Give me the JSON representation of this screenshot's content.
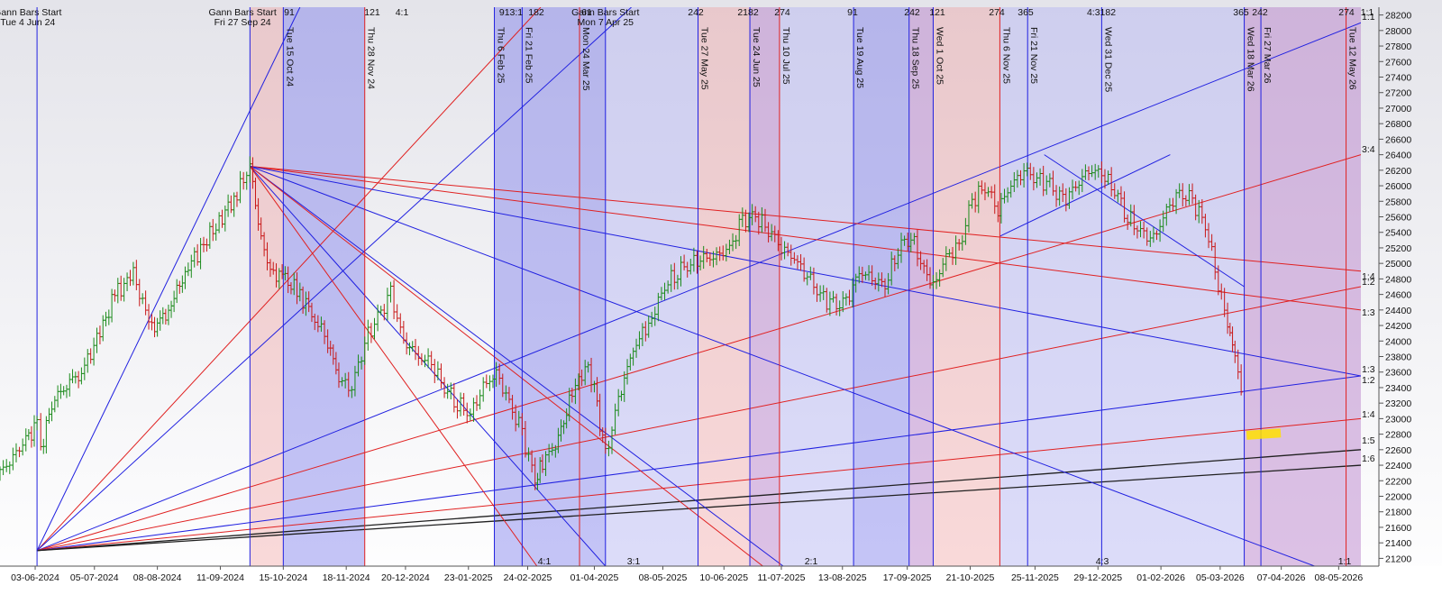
{
  "chart_data": {
    "type": "line",
    "title": "",
    "xlabel": "",
    "ylabel": "",
    "ylim": [
      21100,
      28300
    ],
    "xlim": [
      "2024-05-15",
      "2026-05-20"
    ],
    "grid": false,
    "price_ticks": [
      21200,
      21400,
      21600,
      21800,
      22000,
      22200,
      22400,
      22600,
      22800,
      23000,
      23200,
      23400,
      23600,
      23800,
      24000,
      24200,
      24400,
      24600,
      24800,
      25000,
      25200,
      25400,
      25600,
      25800,
      26000,
      26200,
      26400,
      26600,
      26800,
      27000,
      27200,
      27400,
      27600,
      27800,
      28000,
      28200
    ],
    "date_ticks": [
      {
        "date": "2024-06-03",
        "label": "03-06-2024"
      },
      {
        "date": "2024-07-05",
        "label": "05-07-2024"
      },
      {
        "date": "2024-08-08",
        "label": "08-08-2024"
      },
      {
        "date": "2024-09-11",
        "label": "11-09-2024"
      },
      {
        "date": "2024-10-15",
        "label": "15-10-2024"
      },
      {
        "date": "2024-11-18",
        "label": "18-11-2024"
      },
      {
        "date": "2024-12-20",
        "label": "20-12-2024"
      },
      {
        "date": "2025-01-23",
        "label": "23-01-2025"
      },
      {
        "date": "2025-02-24",
        "label": "24-02-2025"
      },
      {
        "date": "2025-04-01",
        "label": "01-04-2025"
      },
      {
        "date": "2025-05-08",
        "label": "08-05-2025"
      },
      {
        "date": "2025-06-10",
        "label": "10-06-2025"
      },
      {
        "date": "2025-07-11",
        "label": "11-07-2025"
      },
      {
        "date": "2025-08-13",
        "label": "13-08-2025"
      },
      {
        "date": "2025-09-17",
        "label": "17-09-2025"
      },
      {
        "date": "2025-10-21",
        "label": "21-10-2025"
      },
      {
        "date": "2025-11-25",
        "label": "25-11-2025"
      },
      {
        "date": "2025-12-29",
        "label": "29-12-2025"
      },
      {
        "date": "2026-02-01",
        "label": "01-02-2026"
      },
      {
        "date": "2026-03-05",
        "label": "05-03-2026"
      },
      {
        "date": "2026-04-07",
        "label": "07-04-2026"
      },
      {
        "date": "2026-05-08",
        "label": "08-05-2026"
      }
    ],
    "series": [
      {
        "x": [
          "2024-05-15",
          "2024-05-22",
          "2024-05-29",
          "2024-06-04",
          "2024-06-06",
          "2024-06-12",
          "2024-06-20",
          "2024-06-28",
          "2024-07-08",
          "2024-07-16",
          "2024-07-26",
          "2024-08-05",
          "2024-08-14",
          "2024-08-23",
          "2024-09-02",
          "2024-09-12",
          "2024-09-20",
          "2024-09-27",
          "2024-10-03",
          "2024-10-08",
          "2024-10-16",
          "2024-10-24",
          "2024-11-01",
          "2024-11-08",
          "2024-11-14",
          "2024-11-21",
          "2024-11-28",
          "2024-12-05",
          "2024-12-12",
          "2024-12-19",
          "2024-12-27",
          "2025-01-03",
          "2025-01-10",
          "2025-01-17",
          "2025-01-24",
          "2025-01-31",
          "2025-02-07",
          "2025-02-14",
          "2025-02-21",
          "2025-02-28",
          "2025-03-04",
          "2025-03-11",
          "2025-03-20",
          "2025-03-27",
          "2025-04-01",
          "2025-04-07",
          "2025-04-14",
          "2025-04-22",
          "2025-05-02",
          "2025-05-09",
          "2025-05-16",
          "2025-05-23",
          "2025-05-30",
          "2025-06-06",
          "2025-06-13",
          "2025-06-20",
          "2025-06-27",
          "2025-07-04",
          "2025-07-11",
          "2025-07-18",
          "2025-07-25",
          "2025-08-01",
          "2025-08-08",
          "2025-08-15",
          "2025-08-22",
          "2025-08-29",
          "2025-09-05",
          "2025-09-12",
          "2025-09-19",
          "2025-09-26",
          "2025-10-01",
          "2025-10-08",
          "2025-10-15",
          "2025-10-22",
          "2025-10-29",
          "2025-11-05",
          "2025-11-12",
          "2025-11-19",
          "2025-11-26",
          "2025-12-03",
          "2025-12-10",
          "2025-12-17",
          "2025-12-24",
          "2025-12-31",
          "2026-01-07",
          "2026-01-14",
          "2026-01-21",
          "2026-01-28",
          "2026-02-04",
          "2026-02-11",
          "2026-02-18",
          "2026-02-25",
          "2026-03-04",
          "2026-03-09",
          "2026-03-13",
          "2026-03-18"
        ],
        "y": [
          22300,
          22500,
          22750,
          22900,
          22600,
          23200,
          23450,
          23600,
          24100,
          24600,
          24850,
          24150,
          24400,
          24900,
          25250,
          25600,
          25900,
          26250,
          25300,
          24900,
          24800,
          24600,
          24300,
          24000,
          23500,
          23400,
          24000,
          24300,
          24600,
          24000,
          23800,
          23700,
          23400,
          23200,
          23050,
          23400,
          23600,
          23200,
          22800,
          22200,
          22450,
          22650,
          23300,
          23700,
          23400,
          22500,
          23250,
          23900,
          24300,
          24700,
          24900,
          25000,
          25050,
          25100,
          25200,
          25550,
          25600,
          25450,
          25200,
          25050,
          24850,
          24600,
          24450,
          24500,
          24900,
          24800,
          24700,
          25200,
          25350,
          24900,
          24700,
          25100,
          25200,
          25800,
          26000,
          25700,
          26000,
          26200,
          26100,
          26000,
          25800,
          26000,
          26200,
          26150,
          25950,
          25600,
          25400,
          25300,
          25700,
          25900,
          25800,
          25500,
          24750,
          24200,
          23800,
          23100
        ]
      }
    ],
    "vertical_lines": [
      {
        "date": "2024-06-04",
        "label": "",
        "color": "blue"
      },
      {
        "date": "2024-09-27",
        "label": "",
        "color": "blue"
      },
      {
        "date": "2024-10-15",
        "label": "Tue 15 Oct 24",
        "color": "blue"
      },
      {
        "date": "2024-11-28",
        "label": "Thu 28 Nov 24",
        "color": "red"
      },
      {
        "date": "2025-02-06",
        "label": "Thu 6 Feb 25",
        "color": "blue"
      },
      {
        "date": "2025-02-21",
        "label": "Fri 21 Feb 25",
        "color": "blue"
      },
      {
        "date": "2025-03-24",
        "label": "Mon 24 Mar 25",
        "color": "red"
      },
      {
        "date": "2025-04-07",
        "label": "",
        "color": "blue"
      },
      {
        "date": "2025-05-27",
        "label": "Tue 27 May 25",
        "color": "blue"
      },
      {
        "date": "2025-06-24",
        "label": "Tue 24 Jun 25",
        "color": "blue"
      },
      {
        "date": "2025-07-10",
        "label": "Thu 10 Jul 25",
        "color": "red"
      },
      {
        "date": "2025-08-19",
        "label": "Tue 19 Aug 25",
        "color": "blue"
      },
      {
        "date": "2025-09-18",
        "label": "Thu 18 Sep 25",
        "color": "blue"
      },
      {
        "date": "2025-10-01",
        "label": "Wed 1 Oct 25",
        "color": "blue"
      },
      {
        "date": "2025-11-06",
        "label": "Thu 6 Nov 25",
        "color": "red"
      },
      {
        "date": "2025-11-21",
        "label": "Fri 21 Nov 25",
        "color": "blue"
      },
      {
        "date": "2025-12-31",
        "label": "Wed 31 Dec 25",
        "color": "blue"
      },
      {
        "date": "2026-03-18",
        "label": "Wed 18 Mar 26",
        "color": "blue"
      },
      {
        "date": "2026-03-27",
        "label": "Fri 27 Mar 26",
        "color": "blue"
      },
      {
        "date": "2026-05-12",
        "label": "Tue 12 May 26",
        "color": "red"
      }
    ],
    "shaded_bands": [
      {
        "start": "2024-09-27",
        "end": "2024-10-15",
        "color": "pink"
      },
      {
        "start": "2024-10-15",
        "end": "2024-11-28",
        "color": "blue"
      },
      {
        "start": "2025-02-06",
        "end": "2025-02-21",
        "color": "blue"
      },
      {
        "start": "2025-02-21",
        "end": "2025-04-07",
        "color": "blue"
      },
      {
        "start": "2025-04-07",
        "end": "2025-05-27",
        "color": "lavender"
      },
      {
        "start": "2025-05-27",
        "end": "2025-06-24",
        "color": "pink"
      },
      {
        "start": "2025-06-24",
        "end": "2025-07-10",
        "color": "purple"
      },
      {
        "start": "2025-07-10",
        "end": "2025-08-19",
        "color": "lavender"
      },
      {
        "start": "2025-08-19",
        "end": "2025-09-18",
        "color": "blue"
      },
      {
        "start": "2025-09-18",
        "end": "2025-10-01",
        "color": "purple"
      },
      {
        "start": "2025-10-01",
        "end": "2025-11-06",
        "color": "pink"
      },
      {
        "start": "2025-11-06",
        "end": "2026-03-18",
        "color": "lavender"
      },
      {
        "start": "2026-03-18",
        "end": "2026-05-20",
        "color": "purple"
      }
    ],
    "gann_fan_lines": [
      {
        "from": [
          "2024-06-04",
          21300
        ],
        "to": [
          "2024-10-24",
          28300
        ],
        "color": "blue"
      },
      {
        "from": [
          "2024-06-04",
          21300
        ],
        "to": [
          "2025-03-03",
          28300
        ],
        "color": "red"
      },
      {
        "from": [
          "2024-06-04",
          21300
        ],
        "to": [
          "2025-04-21",
          28300
        ],
        "color": "blue"
      },
      {
        "from": [
          "2024-06-04",
          21300
        ],
        "to": [
          "2026-05-20",
          28100
        ],
        "color": "blue"
      },
      {
        "from": [
          "2024-06-04",
          21300
        ],
        "to": [
          "2026-05-20",
          26400
        ],
        "color": "red"
      },
      {
        "from": [
          "2024-06-04",
          21300
        ],
        "to": [
          "2026-05-20",
          24700
        ],
        "color": "red"
      },
      {
        "from": [
          "2024-06-04",
          21300
        ],
        "to": [
          "2026-05-20",
          23550
        ],
        "color": "blue"
      },
      {
        "from": [
          "2024-06-04",
          21300
        ],
        "to": [
          "2026-05-20",
          23000
        ],
        "color": "red"
      },
      {
        "from": [
          "2024-06-04",
          21300
        ],
        "to": [
          "2026-05-20",
          22600
        ],
        "color": "black"
      },
      {
        "from": [
          "2024-06-04",
          21300
        ],
        "to": [
          "2026-05-20",
          22400
        ],
        "color": "black"
      },
      {
        "from": [
          "2024-09-27",
          26250
        ],
        "to": [
          "2026-05-20",
          24900
        ],
        "color": "red"
      },
      {
        "from": [
          "2024-09-27",
          26250
        ],
        "to": [
          "2026-05-20",
          24400
        ],
        "color": "red"
      },
      {
        "from": [
          "2024-09-27",
          26250
        ],
        "to": [
          "2026-05-20",
          23550
        ],
        "color": "blue"
      },
      {
        "from": [
          "2024-09-27",
          26250
        ],
        "to": [
          "2026-04-25",
          21100
        ],
        "color": "blue"
      },
      {
        "from": [
          "2024-09-27",
          26250
        ],
        "to": [
          "2025-07-12",
          21100
        ],
        "color": "blue"
      },
      {
        "from": [
          "2024-09-27",
          26250
        ],
        "to": [
          "2025-07-01",
          21100
        ],
        "color": "red"
      },
      {
        "from": [
          "2024-09-27",
          26250
        ],
        "to": [
          "2025-04-07",
          21100
        ],
        "color": "blue"
      },
      {
        "from": [
          "2024-09-27",
          26250
        ],
        "to": [
          "2025-03-01",
          21100
        ],
        "color": "red"
      },
      {
        "from": [
          "2025-11-30",
          26400
        ],
        "to": [
          "2026-03-18",
          24700
        ],
        "color": "blue"
      },
      {
        "from": [
          "2025-11-06",
          25350
        ],
        "to": [
          "2026-02-06",
          26400
        ],
        "color": "blue"
      }
    ],
    "top_labels": [
      {
        "date": "2024-05-30",
        "text": "Gann Bars Start",
        "sub": "Tue 4 Jun 24"
      },
      {
        "date": "2024-09-23",
        "text": "Gann Bars Start",
        "sub": "Fri 27 Sep 24"
      },
      {
        "date": "2025-04-07",
        "text": "Gann Bars Start",
        "sub": "Mon 7 Apr 25"
      }
    ],
    "ratio_labels_top": [
      "91",
      "121",
      "4:1",
      "913:1",
      "182",
      "61",
      "242",
      "2182",
      "274",
      "91",
      "242",
      "121",
      "274",
      "365",
      "4:3182",
      "365",
      "242",
      "274",
      "1:1"
    ],
    "ratio_labels_bottom": [
      "4:1",
      "3:1",
      "2:1",
      "4:3",
      "1:1"
    ],
    "ratio_labels_right": [
      "1:1",
      "3:4",
      "1:4",
      "1:2",
      "1:3",
      "1:3",
      "1:2",
      "1:4",
      "1:5",
      "1:6"
    ],
    "highlight_marker": {
      "date": "2026-03-28",
      "value": 22800,
      "color": "#ffe000"
    }
  }
}
